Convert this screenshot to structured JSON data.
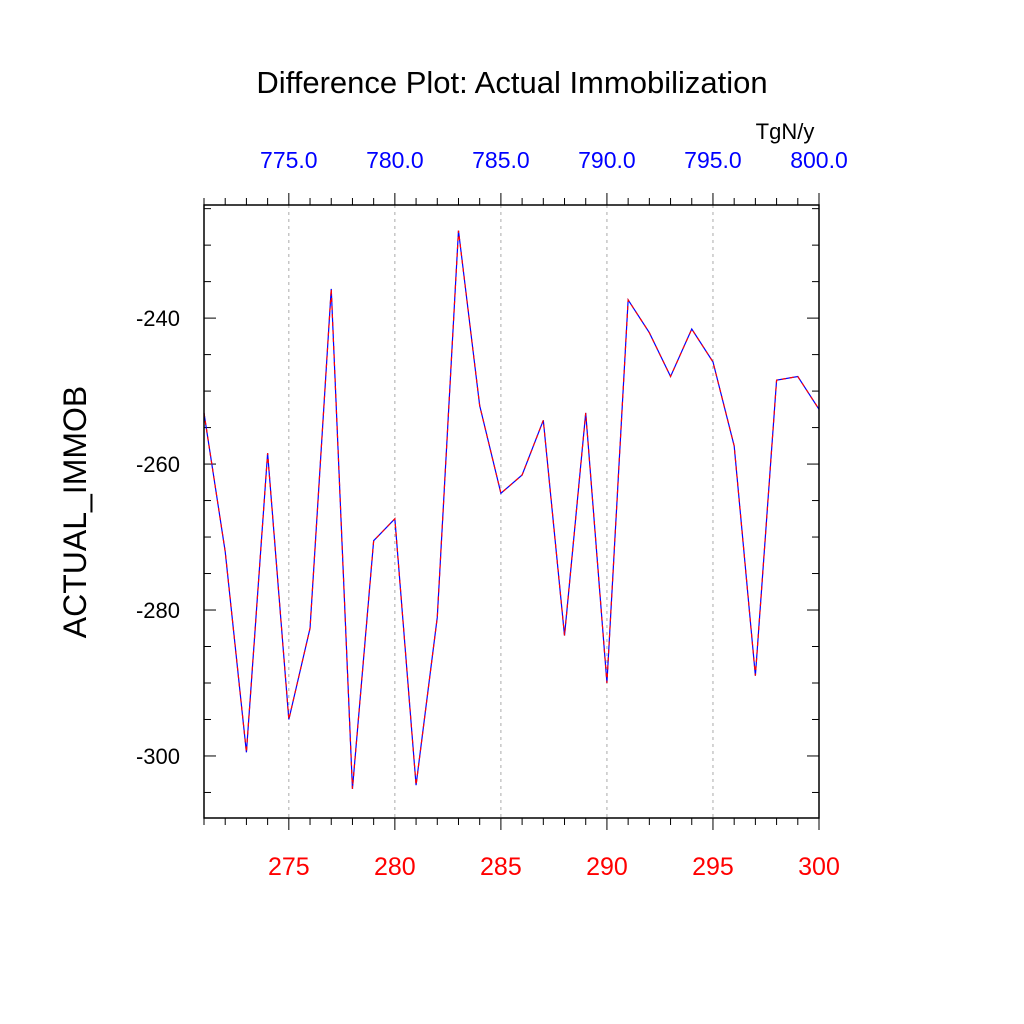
{
  "chart_data": {
    "type": "line",
    "title": "Difference Plot: Actual Immobilization",
    "units": "TgN/y",
    "ylabel": "ACTUAL_IMMOB",
    "xlabel": "",
    "xlim": [
      271,
      300
    ],
    "ylim": [
      -308.5,
      -224.5
    ],
    "x_ticks_bottom": [
      275,
      280,
      285,
      290,
      295,
      300
    ],
    "x_tick_labels_bottom": [
      "275",
      "280",
      "285",
      "290",
      "295",
      "300"
    ],
    "x_ticks_top": [
      275,
      280,
      285,
      290,
      295,
      300
    ],
    "x_tick_labels_top": [
      "775.0",
      "780.0",
      "785.0",
      "790.0",
      "795.0",
      "800.0"
    ],
    "y_ticks": [
      -240,
      -260,
      -280,
      -300
    ],
    "y_tick_labels": [
      "-240",
      "-260",
      "-280",
      "-300"
    ],
    "grid": "vertical dashed",
    "colors": {
      "series_a": "#0000ff",
      "series_b": "#ff0000",
      "bottom_axis": "#ff0000",
      "top_axis": "#0000ff"
    },
    "x": [
      271,
      272,
      273,
      274,
      275,
      276,
      277,
      278,
      279,
      280,
      281,
      282,
      283,
      284,
      285,
      286,
      287,
      288,
      289,
      290,
      291,
      292,
      293,
      294,
      295,
      296,
      297,
      298,
      299,
      300
    ],
    "series": [
      {
        "name": "blue",
        "values": [
          -253,
          -272,
          -299.5,
          -258.5,
          -295,
          -282.5,
          -236,
          -304.5,
          -270.5,
          -267.5,
          -304,
          -281,
          -228,
          -252,
          -264,
          -261.5,
          -254,
          -283.5,
          -253,
          -290,
          -237.5,
          -242,
          -248,
          -241.5,
          -246,
          -257.5,
          -289,
          -248.5,
          -248,
          -252.5
        ]
      },
      {
        "name": "red",
        "values": [
          -253,
          -272,
          -299.5,
          -258.5,
          -295,
          -282.5,
          -236,
          -304.5,
          -270.5,
          -267.5,
          -304,
          -281,
          -228,
          -252,
          -264,
          -261.5,
          -254,
          -283.5,
          -253,
          -290,
          -237.5,
          -242,
          -248,
          -241.5,
          -246,
          -257.5,
          -289,
          -248.5,
          -248,
          -252.5
        ]
      }
    ]
  }
}
